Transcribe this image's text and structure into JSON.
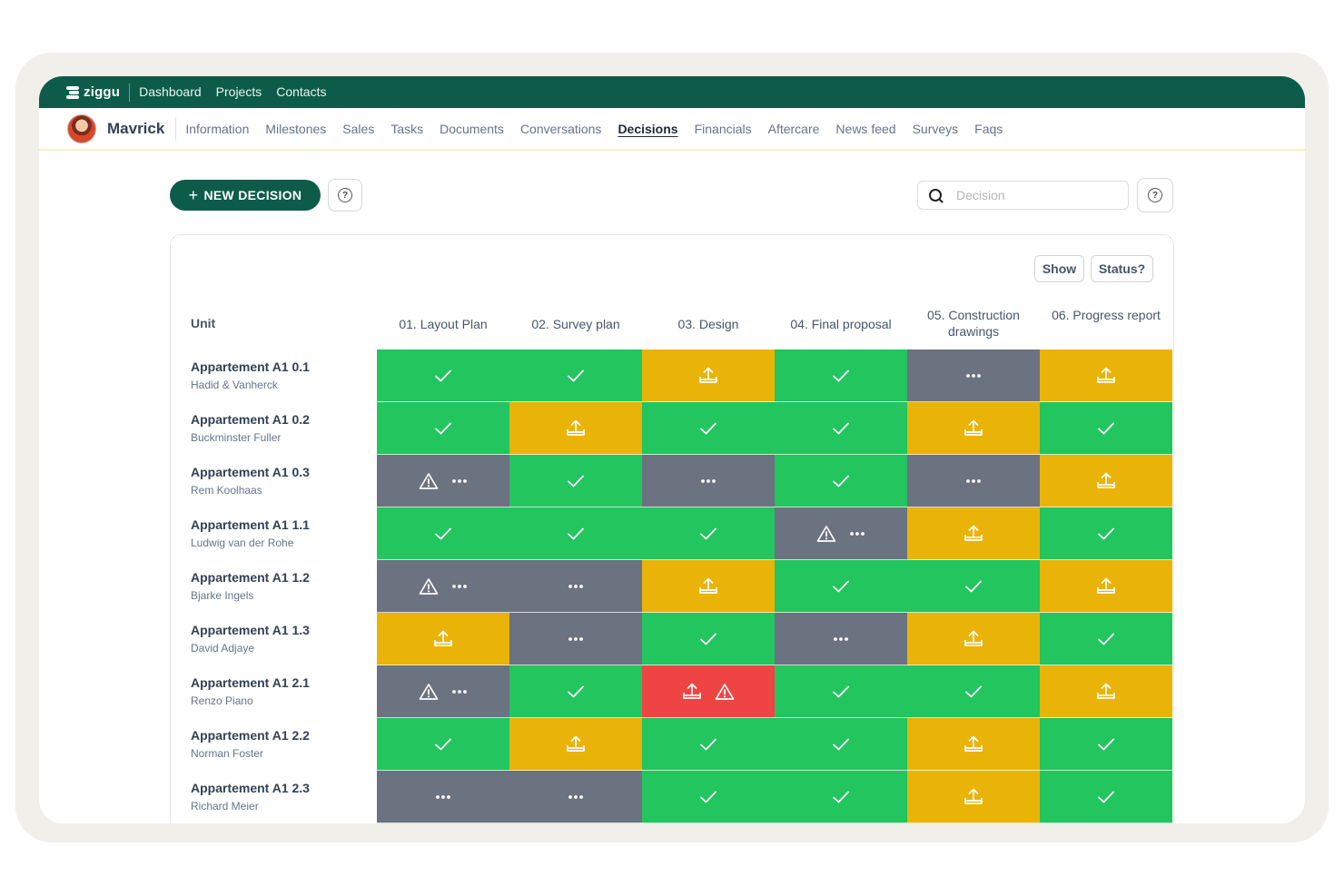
{
  "topbar": {
    "logo": "ziggu",
    "nav": [
      "Dashboard",
      "Projects",
      "Contacts"
    ]
  },
  "subnav": {
    "project": "Mavrick",
    "tabs": [
      "Information",
      "Milestones",
      "Sales",
      "Tasks",
      "Documents",
      "Conversations",
      "Decisions",
      "Financials",
      "Aftercare",
      "News feed",
      "Surveys",
      "Faqs"
    ],
    "active_tab": "Decisions"
  },
  "toolbar": {
    "new_label": "NEW DECISION",
    "search_placeholder": "Decision"
  },
  "filters": {
    "show": "Show",
    "status": "Status?"
  },
  "table": {
    "unit_header": "Unit",
    "columns": [
      "01.  Layout Plan",
      "02. Survey plan",
      "03. Design",
      "04. Final proposal",
      "05. Construction drawings",
      "06. Progress report"
    ],
    "rows": [
      {
        "unit": "Appartement A1 0.1",
        "architect": "Hadid & Vanherck",
        "cells": [
          [
            "green",
            "check"
          ],
          [
            "green",
            "check"
          ],
          [
            "yellow",
            "upload"
          ],
          [
            "green",
            "check"
          ],
          [
            "gray",
            "dots"
          ],
          [
            "yellow",
            "upload"
          ]
        ]
      },
      {
        "unit": "Appartement A1 0.2",
        "architect": "Buckminster Fuller",
        "cells": [
          [
            "green",
            "check"
          ],
          [
            "yellow",
            "upload"
          ],
          [
            "green",
            "check"
          ],
          [
            "green",
            "check"
          ],
          [
            "yellow",
            "upload"
          ],
          [
            "green",
            "check"
          ]
        ]
      },
      {
        "unit": "Appartement A1 0.3",
        "architect": "Rem Koolhaas",
        "cells": [
          [
            "gray",
            "warning-dots"
          ],
          [
            "green",
            "check"
          ],
          [
            "gray",
            "dots"
          ],
          [
            "green",
            "check"
          ],
          [
            "gray",
            "dots"
          ],
          [
            "yellow",
            "upload"
          ]
        ]
      },
      {
        "unit": "Appartement A1 1.1",
        "architect": "Ludwig van der Rohe",
        "cells": [
          [
            "green",
            "check"
          ],
          [
            "green",
            "check"
          ],
          [
            "green",
            "check"
          ],
          [
            "gray",
            "warning-dots"
          ],
          [
            "yellow",
            "upload"
          ],
          [
            "green",
            "check"
          ]
        ]
      },
      {
        "unit": "Appartement A1 1.2",
        "architect": "Bjarke Ingels",
        "cells": [
          [
            "gray",
            "warning-dots"
          ],
          [
            "gray",
            "dots"
          ],
          [
            "yellow",
            "upload"
          ],
          [
            "green",
            "check"
          ],
          [
            "green",
            "check"
          ],
          [
            "yellow",
            "upload"
          ]
        ]
      },
      {
        "unit": "Appartement A1 1.3",
        "architect": "David Adjaye",
        "cells": [
          [
            "yellow",
            "upload"
          ],
          [
            "gray",
            "dots"
          ],
          [
            "green",
            "check"
          ],
          [
            "gray",
            "dots"
          ],
          [
            "yellow",
            "upload"
          ],
          [
            "green",
            "check"
          ]
        ]
      },
      {
        "unit": "Appartement A1 2.1",
        "architect": "Renzo Piano",
        "cells": [
          [
            "gray",
            "warning-dots"
          ],
          [
            "green",
            "check"
          ],
          [
            "red",
            "upload-warning"
          ],
          [
            "green",
            "check"
          ],
          [
            "green",
            "check"
          ],
          [
            "yellow",
            "upload"
          ]
        ]
      },
      {
        "unit": "Appartement A1 2.2",
        "architect": "Norman Foster",
        "cells": [
          [
            "green",
            "check"
          ],
          [
            "yellow",
            "upload"
          ],
          [
            "green",
            "check"
          ],
          [
            "green",
            "check"
          ],
          [
            "yellow",
            "upload"
          ],
          [
            "green",
            "check"
          ]
        ]
      },
      {
        "unit": "Appartement A1 2.3",
        "architect": "Richard Meier",
        "cells": [
          [
            "gray",
            "dots"
          ],
          [
            "gray",
            "dots"
          ],
          [
            "green",
            "check"
          ],
          [
            "green",
            "check"
          ],
          [
            "yellow",
            "upload"
          ],
          [
            "green",
            "check"
          ]
        ]
      }
    ]
  },
  "colors": {
    "brand": "#0d5c4a",
    "green": "#22c55e",
    "yellow": "#eab308",
    "gray": "#6b7280",
    "red": "#ef4444"
  }
}
